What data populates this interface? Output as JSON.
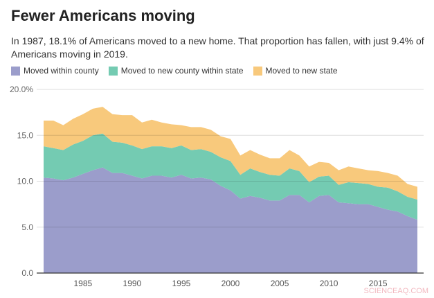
{
  "title": "Fewer Americans moving",
  "subtitle": "In 1987, 18.1% of Americans moved to a new home. That proportion has fallen, with just 9.4% of Americans moving in 2019.",
  "watermark": "SCIENCEAQ.COM",
  "chart_data": {
    "type": "area",
    "stacked": true,
    "x": [
      1981,
      1982,
      1983,
      1984,
      1985,
      1986,
      1987,
      1988,
      1989,
      1990,
      1991,
      1992,
      1993,
      1994,
      1995,
      1996,
      1997,
      1998,
      1999,
      2000,
      2001,
      2002,
      2003,
      2004,
      2005,
      2006,
      2007,
      2008,
      2009,
      2010,
      2011,
      2012,
      2013,
      2014,
      2015,
      2016,
      2017,
      2018,
      2019
    ],
    "xticks": [
      1985,
      1990,
      1995,
      2000,
      2005,
      2010,
      2015
    ],
    "yticks": [
      "0.0",
      "5.0",
      "10.0",
      "15.0",
      "20.0%"
    ],
    "ylim": [
      0,
      20
    ],
    "grid": true,
    "legend": "top",
    "series": [
      {
        "name": "Moved within county",
        "color": "#9b9dcb",
        "values": [
          10.4,
          10.3,
          10.1,
          10.4,
          10.8,
          11.2,
          11.5,
          10.9,
          10.9,
          10.6,
          10.3,
          10.6,
          10.6,
          10.4,
          10.7,
          10.3,
          10.4,
          10.2,
          9.5,
          9.0,
          8.1,
          8.4,
          8.2,
          7.9,
          7.9,
          8.5,
          8.5,
          7.7,
          8.4,
          8.5,
          7.7,
          7.6,
          7.5,
          7.5,
          7.2,
          6.9,
          6.7,
          6.2,
          5.8
        ]
      },
      {
        "name": "Moved to new county within state",
        "color": "#74cbb2",
        "values": [
          3.4,
          3.3,
          3.3,
          3.6,
          3.6,
          3.8,
          3.7,
          3.4,
          3.3,
          3.3,
          3.2,
          3.2,
          3.2,
          3.2,
          3.2,
          3.1,
          3.1,
          3.0,
          3.1,
          3.2,
          2.6,
          3.0,
          2.8,
          2.8,
          2.7,
          2.9,
          2.6,
          2.2,
          2.1,
          2.1,
          1.9,
          2.3,
          2.3,
          2.2,
          2.2,
          2.4,
          2.2,
          2.1,
          2.2
        ]
      },
      {
        "name": "Moved to new state",
        "color": "#f8c97c",
        "values": [
          2.8,
          3.0,
          2.7,
          2.8,
          2.9,
          2.9,
          2.9,
          3.0,
          3.0,
          3.3,
          2.9,
          2.9,
          2.6,
          2.6,
          2.2,
          2.5,
          2.4,
          2.4,
          2.3,
          2.4,
          2.1,
          2.0,
          1.9,
          1.8,
          1.9,
          2.0,
          1.7,
          1.7,
          1.6,
          1.4,
          1.6,
          1.7,
          1.6,
          1.5,
          1.7,
          1.6,
          1.7,
          1.4,
          1.4
        ]
      }
    ]
  }
}
